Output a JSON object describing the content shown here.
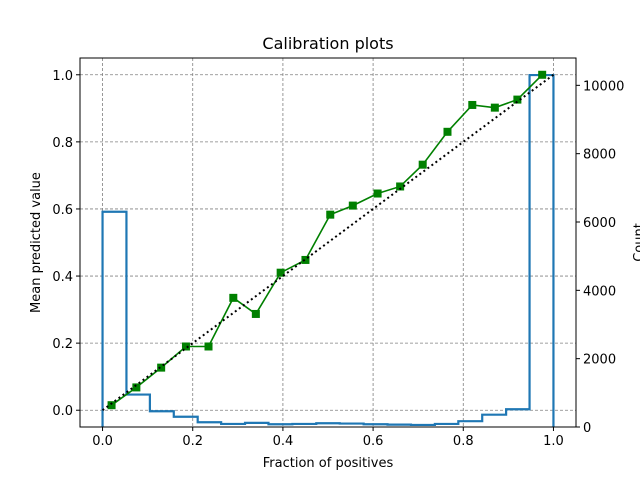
{
  "chart_data": {
    "type": "line",
    "title": "Calibration plots",
    "xlabel": "Fraction of positives",
    "ylabel": "Mean predicted value",
    "y2label": "Count",
    "xlim": [
      -0.05,
      1.05
    ],
    "ylim": [
      -0.05,
      1.05
    ],
    "y2lim": [
      0,
      10800
    ],
    "grid": true,
    "x_ticks": [
      "0.0",
      "0.2",
      "0.4",
      "0.6",
      "0.8",
      "1.0"
    ],
    "y_ticks": [
      "0.0",
      "0.2",
      "0.4",
      "0.6",
      "0.8",
      "1.0"
    ],
    "y2_ticks": [
      "0",
      "2000",
      "4000",
      "6000",
      "8000",
      "10000"
    ],
    "series": [
      {
        "color": "#008000",
        "marker": "square",
        "x": [
          0.02,
          0.075,
          0.13,
          0.185,
          0.235,
          0.29,
          0.34,
          0.395,
          0.45,
          0.505,
          0.555,
          0.61,
          0.66,
          0.71,
          0.765,
          0.82,
          0.87,
          0.92,
          0.975
        ],
        "y": [
          0.015,
          0.068,
          0.127,
          0.19,
          0.19,
          0.335,
          0.287,
          0.41,
          0.448,
          0.583,
          0.61,
          0.646,
          0.667,
          0.732,
          0.83,
          0.91,
          0.902,
          0.926,
          1.0
        ]
      },
      {
        "color": "#000000",
        "style": "dotted",
        "x": [
          0.0,
          1.0
        ],
        "y": [
          0.0,
          1.0
        ]
      }
    ],
    "histogram": {
      "color": "#1f77b4",
      "axis": "right",
      "bin_edges": [
        0.0,
        0.053,
        0.105,
        0.158,
        0.211,
        0.263,
        0.316,
        0.368,
        0.421,
        0.474,
        0.526,
        0.579,
        0.632,
        0.684,
        0.737,
        0.789,
        0.842,
        0.895,
        0.947,
        1.0
      ],
      "counts": [
        6300,
        950,
        460,
        300,
        140,
        90,
        120,
        80,
        90,
        110,
        100,
        80,
        70,
        60,
        90,
        170,
        360,
        520,
        10300
      ]
    }
  }
}
